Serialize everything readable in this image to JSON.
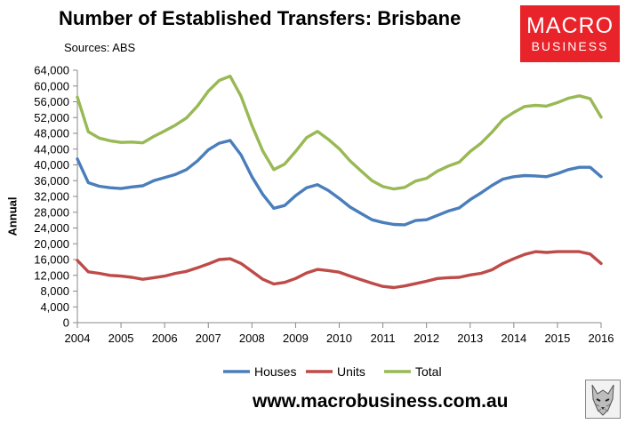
{
  "title": "Number of Established Transfers: Brisbane",
  "sources": "Sources: ABS",
  "logo": {
    "line1": "MACRO",
    "line2": "BUSINESS"
  },
  "url": "www.macrobusiness.com.au",
  "chart_data": {
    "type": "line",
    "title": "Number of Established Transfers: Brisbane",
    "ylabel": "Annual",
    "xlabel": "",
    "ylim": [
      0,
      64000
    ],
    "ytick_step": 4000,
    "xlim": [
      2004,
      2016
    ],
    "xticks": [
      "2004",
      "2005",
      "2006",
      "2007",
      "2008",
      "2009",
      "2010",
      "2011",
      "2012",
      "2013",
      "2014",
      "2015",
      "2016"
    ],
    "grid": false,
    "legend": "bottom",
    "x": [
      2004.0,
      2004.25,
      2004.5,
      2004.75,
      2005.0,
      2005.25,
      2005.5,
      2005.75,
      2006.0,
      2006.25,
      2006.5,
      2006.75,
      2007.0,
      2007.25,
      2007.5,
      2007.75,
      2008.0,
      2008.25,
      2008.5,
      2008.75,
      2009.0,
      2009.25,
      2009.5,
      2009.75,
      2010.0,
      2010.25,
      2010.5,
      2010.75,
      2011.0,
      2011.25,
      2011.5,
      2011.75,
      2012.0,
      2012.25,
      2012.5,
      2012.75,
      2013.0,
      2013.25,
      2013.5,
      2013.75,
      2014.0,
      2014.25,
      2014.5,
      2014.75,
      2015.0,
      2015.25,
      2015.5,
      2015.75,
      2016.0
    ],
    "series": [
      {
        "name": "Houses",
        "color": "#4a7ebb",
        "values": [
          41500,
          35500,
          34600,
          34200,
          34000,
          34400,
          34700,
          36000,
          36800,
          37600,
          38800,
          41000,
          43800,
          45500,
          46200,
          42500,
          37000,
          32500,
          29000,
          29700,
          32200,
          34200,
          35000,
          33500,
          31500,
          29300,
          27700,
          26100,
          25400,
          24900,
          24800,
          25900,
          26100,
          27200,
          28300,
          29100,
          31200,
          32900,
          34800,
          36400,
          37000,
          37300,
          37200,
          37000,
          37800,
          38800,
          39400,
          39400,
          37000
        ]
      },
      {
        "name": "Units",
        "color": "#be4b48",
        "values": [
          15800,
          12900,
          12500,
          12000,
          11800,
          11500,
          11000,
          11400,
          11800,
          12500,
          13000,
          13900,
          14900,
          16000,
          16200,
          15000,
          13000,
          11000,
          9800,
          10200,
          11200,
          12600,
          13500,
          13200,
          12800,
          11800,
          10900,
          10000,
          9200,
          8900,
          9300,
          9900,
          10500,
          11200,
          11400,
          11500,
          12100,
          12500,
          13400,
          15000,
          16200,
          17300,
          18000,
          17800,
          18000,
          18000,
          18000,
          17400,
          15000
        ]
      },
      {
        "name": "Total",
        "color": "#98b954",
        "values": [
          57200,
          48400,
          46800,
          46100,
          45700,
          45800,
          45600,
          47200,
          48600,
          50100,
          51900,
          54900,
          58700,
          61400,
          62500,
          57400,
          50000,
          43500,
          38800,
          40200,
          43400,
          46900,
          48500,
          46500,
          44100,
          41000,
          38500,
          36000,
          34500,
          33900,
          34300,
          35900,
          36600,
          38400,
          39700,
          40700,
          43400,
          45500,
          48300,
          51500,
          53300,
          54800,
          55100,
          54900,
          55800,
          56900,
          57500,
          56800,
          52100
        ]
      }
    ]
  }
}
